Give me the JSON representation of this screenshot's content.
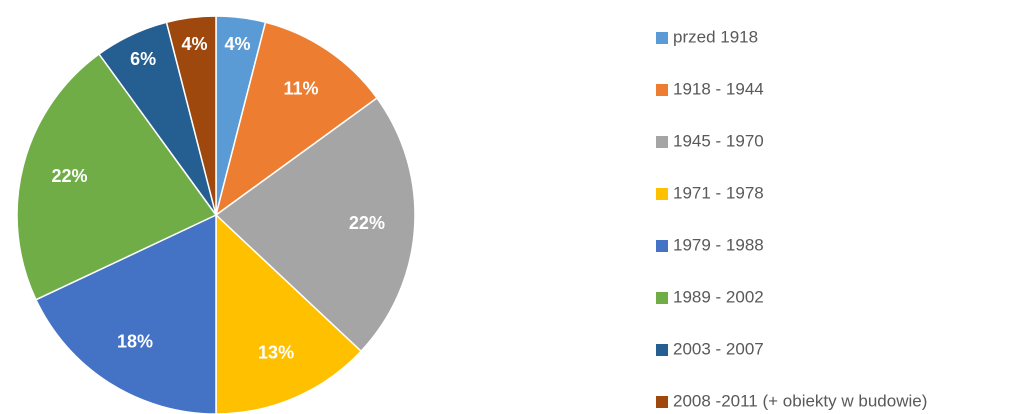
{
  "chart_data": {
    "type": "pie",
    "categories": [
      "przed 1918",
      "1918 - 1944",
      "1945 - 1970",
      "1971 - 1978",
      "1979 - 1988",
      "1989 - 2002",
      "2003 - 2007",
      "2008 -2011 (+ obiekty w budowie)"
    ],
    "values": [
      4,
      11,
      22,
      13,
      18,
      22,
      6,
      4
    ],
    "value_labels": [
      "4%",
      "11%",
      "22%",
      "13%",
      "18%",
      "22%",
      "6%",
      "4%"
    ],
    "colors": [
      "#5b9bd5",
      "#ed7d31",
      "#a5a5a5",
      "#ffc000",
      "#4472c4",
      "#70ad47",
      "#255e91",
      "#9e480e"
    ],
    "legend": "right"
  }
}
